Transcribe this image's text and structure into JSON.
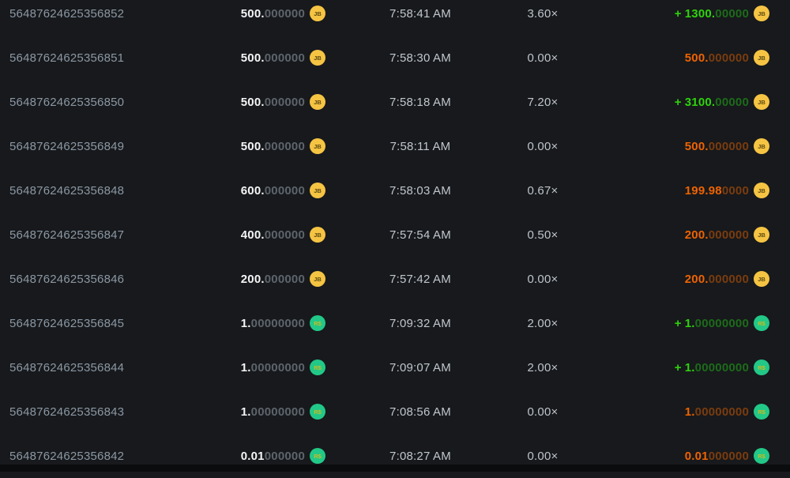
{
  "colors": {
    "bg": "#17191c",
    "footer_bg": "#0b0c0e",
    "id_text": "#8c98a4",
    "time_text": "#c1c7ce",
    "mult_text": "#bfc5cc",
    "amount_main": "#f4f5f6",
    "amount_dim": "#5d646c",
    "profit_main": "#2fd30c",
    "profit_dim": "#1d6b1a",
    "loss_main": "#ee6301",
    "loss_dim": "#7a3c0f",
    "coin_jb_bg": "#f6c443",
    "coin_jb_text": "#5b4a12",
    "coin_rs_bg": "#22c887",
    "coin_rs_text": "#c7bb27"
  },
  "coins": {
    "JB": {
      "label": "JB",
      "icon_name": "jb-coin-icon"
    },
    "RS": {
      "label": "R$",
      "icon_name": "brl-coin-icon"
    }
  },
  "rows": [
    {
      "id": "56487624625356852",
      "amount_main": "500.",
      "amount_zeros": "000000",
      "coin": "JB",
      "time": "7:58:41 AM",
      "multiplier": "3.60×",
      "payout_sign": "+",
      "payout_main": "1300.",
      "payout_zeros": "00000",
      "result": "win"
    },
    {
      "id": "56487624625356851",
      "amount_main": "500.",
      "amount_zeros": "000000",
      "coin": "JB",
      "time": "7:58:30 AM",
      "multiplier": "0.00×",
      "payout_sign": "",
      "payout_main": "500.",
      "payout_zeros": "000000",
      "result": "loss"
    },
    {
      "id": "56487624625356850",
      "amount_main": "500.",
      "amount_zeros": "000000",
      "coin": "JB",
      "time": "7:58:18 AM",
      "multiplier": "7.20×",
      "payout_sign": "+",
      "payout_main": "3100.",
      "payout_zeros": "00000",
      "result": "win"
    },
    {
      "id": "56487624625356849",
      "amount_main": "500.",
      "amount_zeros": "000000",
      "coin": "JB",
      "time": "7:58:11 AM",
      "multiplier": "0.00×",
      "payout_sign": "",
      "payout_main": "500.",
      "payout_zeros": "000000",
      "result": "loss"
    },
    {
      "id": "56487624625356848",
      "amount_main": "600.",
      "amount_zeros": "000000",
      "coin": "JB",
      "time": "7:58:03 AM",
      "multiplier": "0.67×",
      "payout_sign": "",
      "payout_main": "199.98",
      "payout_zeros": "0000",
      "result": "loss"
    },
    {
      "id": "56487624625356847",
      "amount_main": "400.",
      "amount_zeros": "000000",
      "coin": "JB",
      "time": "7:57:54 AM",
      "multiplier": "0.50×",
      "payout_sign": "",
      "payout_main": "200.",
      "payout_zeros": "000000",
      "result": "loss"
    },
    {
      "id": "56487624625356846",
      "amount_main": "200.",
      "amount_zeros": "000000",
      "coin": "JB",
      "time": "7:57:42 AM",
      "multiplier": "0.00×",
      "payout_sign": "",
      "payout_main": "200.",
      "payout_zeros": "000000",
      "result": "loss"
    },
    {
      "id": "56487624625356845",
      "amount_main": "1.",
      "amount_zeros": "00000000",
      "coin": "RS",
      "time": "7:09:32 AM",
      "multiplier": "2.00×",
      "payout_sign": "+",
      "payout_main": "1.",
      "payout_zeros": "00000000",
      "result": "win"
    },
    {
      "id": "56487624625356844",
      "amount_main": "1.",
      "amount_zeros": "00000000",
      "coin": "RS",
      "time": "7:09:07 AM",
      "multiplier": "2.00×",
      "payout_sign": "+",
      "payout_main": "1.",
      "payout_zeros": "00000000",
      "result": "win"
    },
    {
      "id": "56487624625356843",
      "amount_main": "1.",
      "amount_zeros": "00000000",
      "coin": "RS",
      "time": "7:08:56 AM",
      "multiplier": "0.00×",
      "payout_sign": "",
      "payout_main": "1.",
      "payout_zeros": "00000000",
      "result": "loss"
    },
    {
      "id": "56487624625356842",
      "amount_main": "0.01",
      "amount_zeros": "000000",
      "coin": "RS",
      "time": "7:08:27 AM",
      "multiplier": "0.00×",
      "payout_sign": "",
      "payout_main": "0.01",
      "payout_zeros": "000000",
      "result": "loss"
    }
  ]
}
